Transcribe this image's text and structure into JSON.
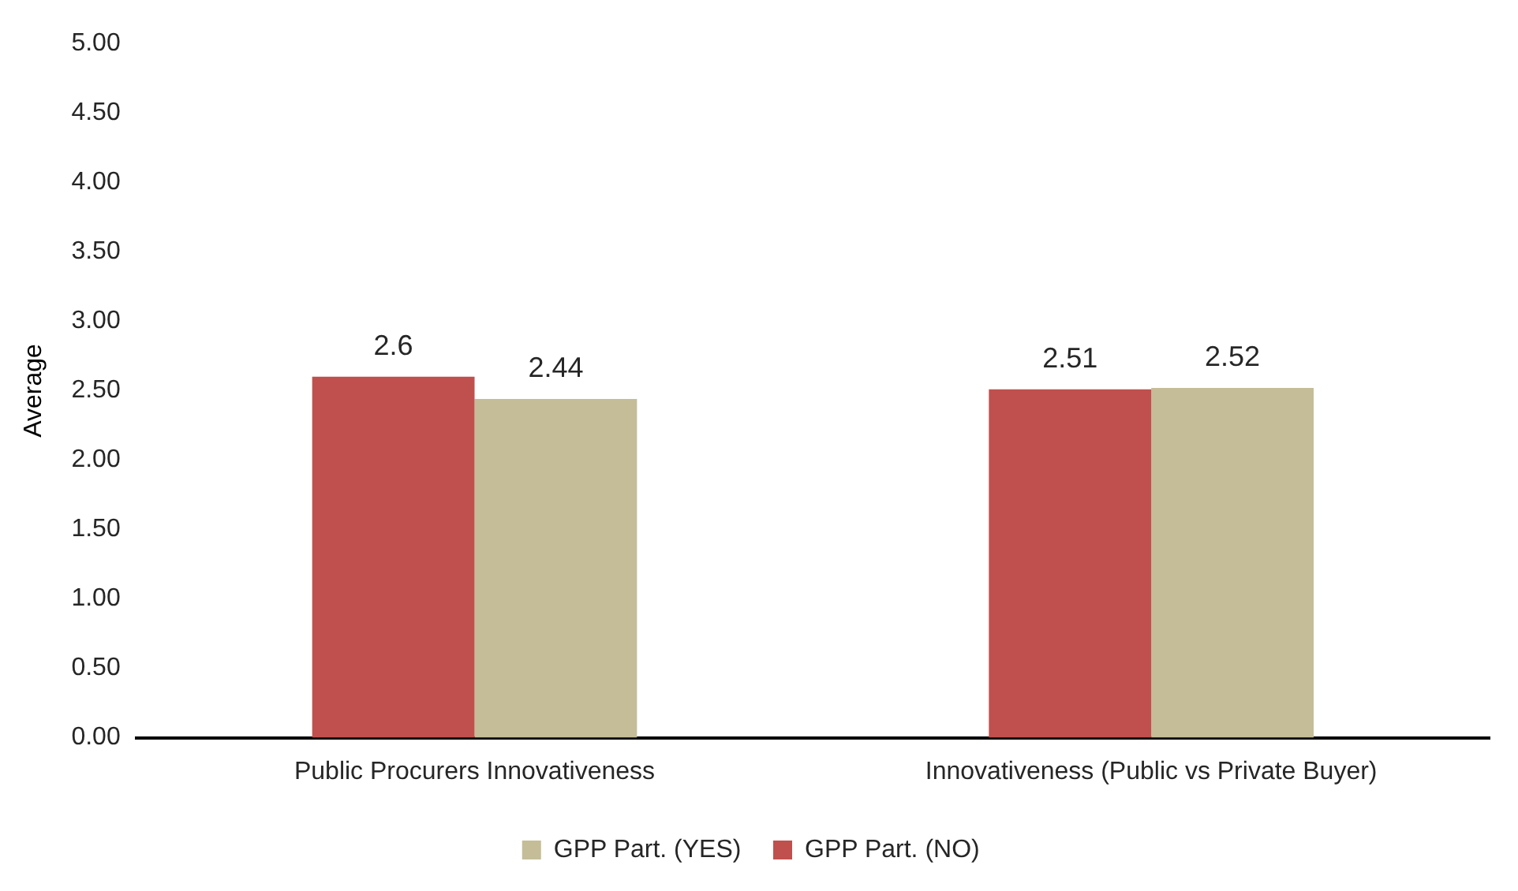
{
  "chart_data": {
    "type": "bar",
    "ylabel": "Average",
    "categories": [
      "Public Procurers Innovativeness",
      "Innovativeness (Public vs Private Buyer)"
    ],
    "series": [
      {
        "name": "GPP Part. (NO)",
        "color": "#c0504d",
        "values": [
          2.6,
          2.51
        ]
      },
      {
        "name": "GPP Part. (YES)",
        "color": "#c4bd97",
        "values": [
          2.44,
          2.52
        ]
      }
    ],
    "ylim": [
      0,
      5
    ],
    "yticks": [
      {
        "value": 0,
        "label": "0.00"
      },
      {
        "value": 0.5,
        "label": "0.50"
      },
      {
        "value": 1,
        "label": "1.00"
      },
      {
        "value": 1.5,
        "label": "1.50"
      },
      {
        "value": 2,
        "label": "2.00"
      },
      {
        "value": 2.5,
        "label": "2.50"
      },
      {
        "value": 3,
        "label": "3.00"
      },
      {
        "value": 3.5,
        "label": "3.50"
      },
      {
        "value": 4,
        "label": "4.00"
      },
      {
        "value": 4.5,
        "label": "4.50"
      },
      {
        "value": 5,
        "label": "5.00"
      }
    ],
    "grid": false,
    "legend": "bottom",
    "data_labels": true
  }
}
